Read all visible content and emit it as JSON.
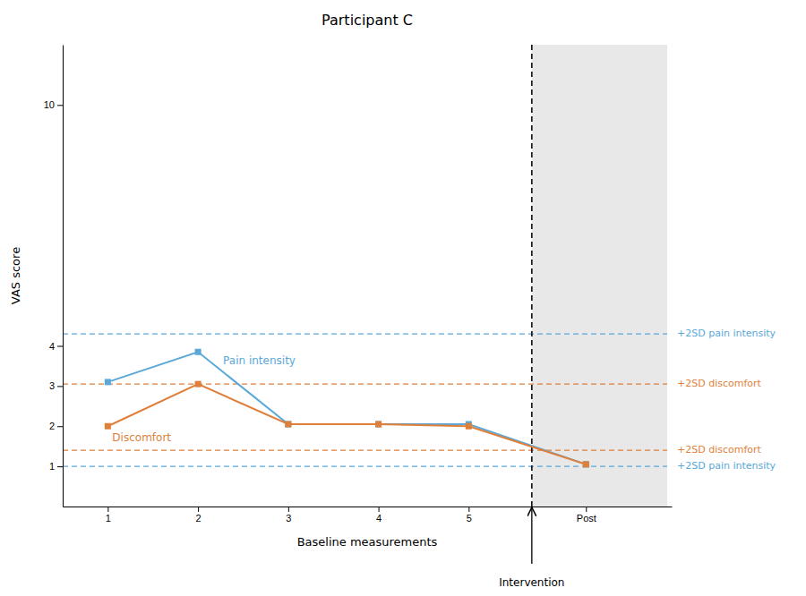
{
  "chart_data": {
    "type": "line",
    "title": "Participant C",
    "x_label": "Baseline measurements",
    "y_label": "VAS score",
    "x": [
      1,
      2,
      3,
      4,
      5,
      6.3
    ],
    "series": [
      {
        "name": "Pain intensity",
        "color": "#5aa8d8",
        "marker": "square",
        "values": [
          3.1,
          3.85,
          2.05,
          2.05,
          2.05,
          1.05
        ]
      },
      {
        "name": "Discomfort",
        "color": "#e07f3a",
        "marker": "square",
        "values": [
          2.0,
          3.05,
          2.05,
          2.05,
          2.0,
          1.05
        ]
      }
    ],
    "xlim": [
      0.5,
      7.25
    ],
    "xticks": [
      1,
      2,
      3,
      4,
      5,
      {
        "value": 6.3,
        "label": "Post"
      }
    ],
    "ylim": [
      0,
      11.5
    ],
    "yticks": [
      1,
      2,
      3,
      4,
      10
    ],
    "grid": false,
    "shaded_region": [
      5.7,
      7.2
    ],
    "intervention": {
      "x": 5.7,
      "label": "Intervention",
      "line_style": "dashed"
    },
    "reference_lines": [
      {
        "value": 4.3,
        "label": "+2SD pain intensity",
        "color": "#5aa8d8",
        "line_style": "dashed"
      },
      {
        "value": 3.05,
        "label": "+2SD discomfort",
        "color": "#e07f3a",
        "line_style": "dashed"
      },
      {
        "value": 1.4,
        "label": "+2SD discomfort",
        "color": "#e07f3a",
        "line_style": "dashed"
      },
      {
        "value": 1.0,
        "label": "+2SD pain intensity",
        "color": "#5aa8d8",
        "line_style": "dashed"
      }
    ]
  }
}
